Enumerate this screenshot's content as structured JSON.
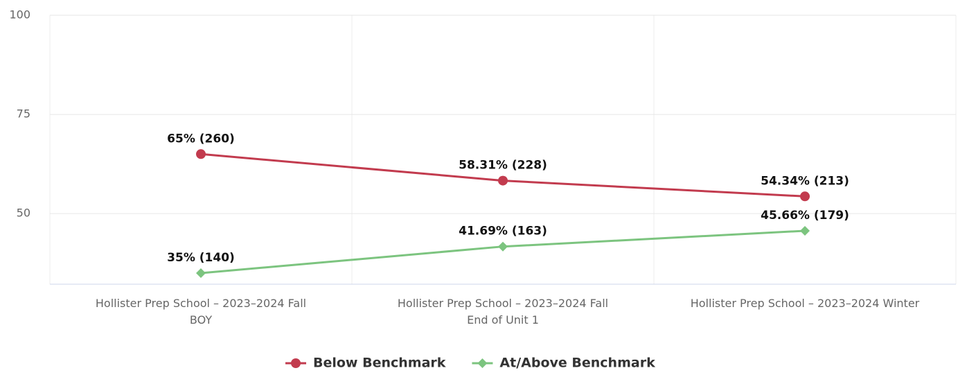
{
  "chart_data": {
    "type": "line",
    "categories": [
      "Hollister Prep School – 2023–2024 Fall\nBOY",
      "Hollister Prep School – 2023–2024 Fall\nEnd of Unit 1",
      "Hollister Prep School – 2023–2024 Winter"
    ],
    "series": [
      {
        "name": "Below Benchmark",
        "color": "#c23b4e",
        "marker": "circle",
        "values": [
          65,
          58.31,
          54.34
        ],
        "value_labels": [
          "65% (260)",
          "58.31% (228)",
          "54.34% (213)"
        ]
      },
      {
        "name": "At/Above Benchmark",
        "color": "#7cc47f",
        "marker": "diamond",
        "values": [
          35,
          41.69,
          45.66
        ],
        "value_labels": [
          "35% (140)",
          "41.69% (163)",
          "45.66% (179)"
        ]
      }
    ],
    "ylim": [
      32.2,
      100
    ],
    "yticks": [
      50,
      75,
      100
    ],
    "grid": true,
    "legend": "bottom"
  }
}
